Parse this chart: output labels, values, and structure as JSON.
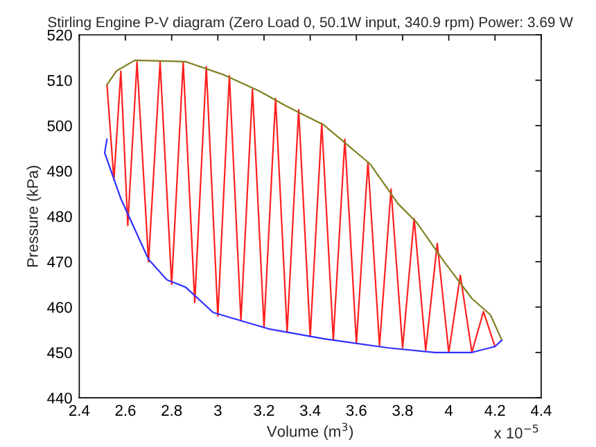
{
  "chart_data": {
    "type": "line",
    "title": "Stirling Engine P-V diagram (Zero Load 0, 50.1W input, 340.9 rpm) Power: 3.69 W",
    "xlabel": "Volume (m$^{3}$)",
    "ylabel": "Pressure (kPa)",
    "annotations": [
      "x 10$^{−5}$"
    ],
    "xlim": [
      2.4,
      4.4
    ],
    "xticks": [
      2.4,
      2.6,
      2.8,
      3,
      3.2,
      3.4,
      3.6,
      3.8,
      4,
      4.2,
      4.4
    ],
    "ylim": [
      440,
      520
    ],
    "yticks": [
      440,
      450,
      460,
      470,
      480,
      490,
      500,
      510,
      520
    ],
    "grid": false,
    "legend": false,
    "marker": "none",
    "line_style": "solid",
    "series": [
      {
        "color": "#ff2020",
        "x": [
          2.52,
          2.55,
          2.58,
          2.61,
          2.65,
          2.7,
          2.75,
          2.8,
          2.85,
          2.9,
          2.95,
          3.0,
          3.05,
          3.1,
          3.15,
          3.2,
          3.25,
          3.3,
          3.35,
          3.4,
          3.45,
          3.5,
          3.55,
          3.6,
          3.65,
          3.7,
          3.75,
          3.8,
          3.85,
          3.9,
          3.95,
          4.0,
          4.05,
          4.1,
          4.15,
          4.2
        ],
        "values": [
          509,
          488,
          512,
          478,
          514,
          470,
          514,
          465,
          514,
          461,
          513,
          458,
          511,
          457,
          508,
          455.5,
          506,
          454.5,
          503.5,
          453.5,
          500.5,
          452.8,
          497,
          452,
          492,
          451.5,
          486,
          451,
          479.5,
          450.5,
          474,
          450,
          467,
          450,
          459,
          451.3
        ]
      },
      {
        "color": "#808020",
        "x": [
          2.52,
          2.56,
          2.64,
          2.86,
          3.02,
          3.18,
          3.3,
          3.46,
          3.66,
          3.78,
          3.86,
          3.98,
          4.1,
          4.18,
          4.23
        ],
        "values": [
          509,
          512,
          514.4,
          514.1,
          511.3,
          507.6,
          504.2,
          500.1,
          491.5,
          482.8,
          478.7,
          470,
          461.9,
          458.3,
          452.7
        ]
      },
      {
        "color": "#3030ff",
        "x": [
          2.52,
          2.51,
          2.58,
          2.7,
          2.78,
          2.86,
          2.98,
          3.22,
          3.46,
          3.74,
          3.94,
          4.1,
          4.2,
          4.23
        ],
        "values": [
          497,
          494,
          483.9,
          470.5,
          466,
          464.4,
          458.8,
          455.2,
          453,
          451,
          450,
          450,
          451.3,
          452.7
        ]
      }
    ]
  }
}
